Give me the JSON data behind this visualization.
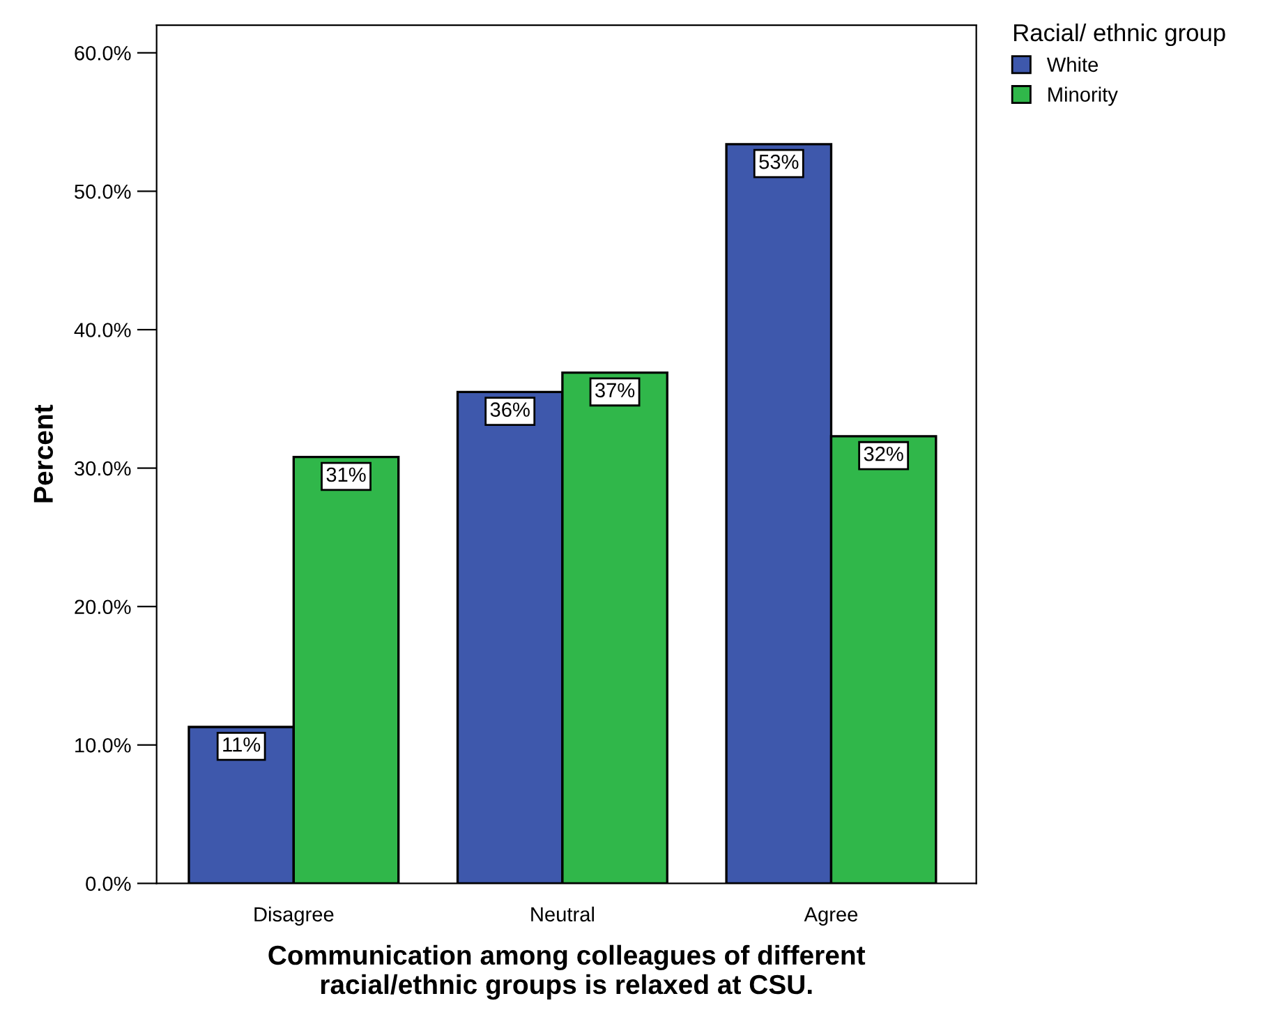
{
  "chart_data": {
    "type": "bar",
    "xlabel": "Communication among colleagues of different\nracial/ethnic groups is relaxed at CSU.",
    "ylabel": "Percent",
    "legend_title": "Racial/ ethnic group",
    "categories": [
      "Disagree",
      "Neutral",
      "Agree"
    ],
    "series": [
      {
        "name": "White",
        "color": "#3e58ac",
        "values": [
          11.3,
          35.5,
          53.4
        ],
        "value_labels": [
          "11%",
          "36%",
          "53%"
        ]
      },
      {
        "name": "Minority",
        "color": "#30b74a",
        "values": [
          30.8,
          36.9,
          32.3
        ],
        "value_labels": [
          "31%",
          "37%",
          "32%"
        ]
      }
    ],
    "ylim": [
      0,
      62
    ],
    "yticks": [
      {
        "value": 0,
        "label": "0.0%"
      },
      {
        "value": 10,
        "label": "10.0%"
      },
      {
        "value": 20,
        "label": "20.0%"
      },
      {
        "value": 30,
        "label": "30.0%"
      },
      {
        "value": 40,
        "label": "40.0%"
      },
      {
        "value": 50,
        "label": "50.0%"
      },
      {
        "value": 60,
        "label": "60.0%"
      }
    ],
    "grid": false,
    "legend": "top right"
  }
}
